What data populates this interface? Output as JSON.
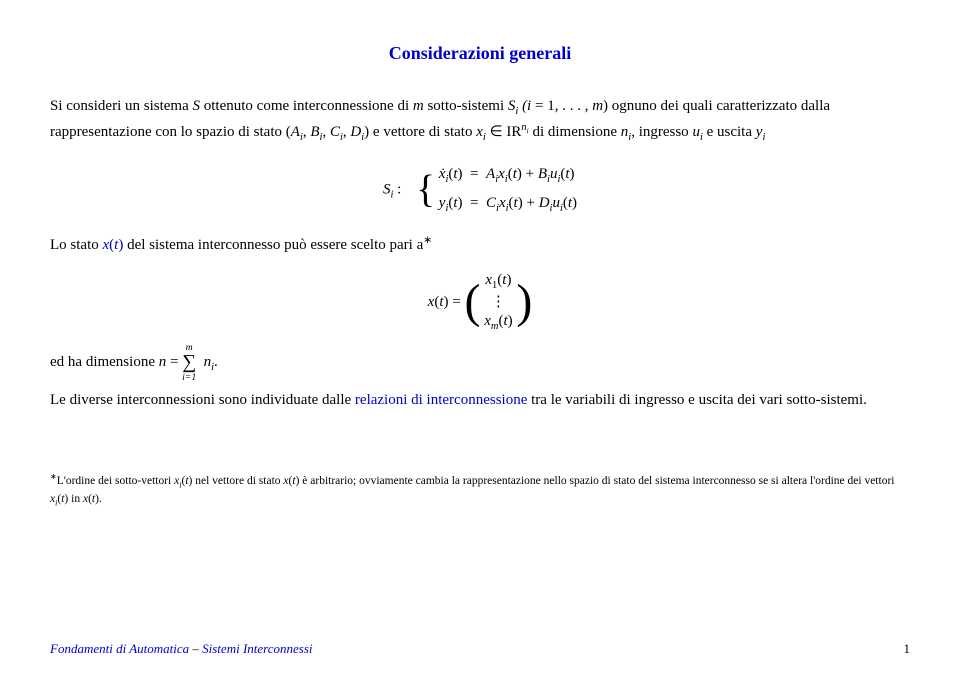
{
  "title": "Considerazioni generali",
  "p1a": "Si consideri un sistema ",
  "p1b": " ottenuto come interconnessione di ",
  "p1c": " sotto-sistemi ",
  "p1d": " ognuno dei quali caratterizzato dalla rappresentazione con lo spazio di stato ",
  "p1e": " e vettore di stato ",
  "p1f": " di dimensione ",
  "p1g": ", ingresso ",
  "p1h": " e uscita ",
  "p2": "Lo stato ",
  "p2b": " del sistema interconnesso può essere scelto pari a",
  "p3": "ed ha dimensione ",
  "p4a": "Le diverse interconnessioni sono individuate dalle ",
  "p4link": "relazioni di interconnessione",
  "p4b": " tra le variabili di ingresso e uscita dei vari sotto-sistemi.",
  "fn_a": "L'ordine dei sotto-vettori ",
  "fn_b": " nel vettore di stato ",
  "fn_c": " è arbitrario; ovviamente cambia la rappresentazione nello spazio di stato del sistema interconnesso se si altera l'ordine dei vettori ",
  "fn_d": " in ",
  "footer_a": "Fondamenti di Automatica",
  "footer_b": "Sistemi Interconnessi",
  "page_num": "1",
  "math": {
    "S": "S",
    "m": "m",
    "Si": "S",
    "i_range": "(i = 1, . . . , m)",
    "ABCD": "(A",
    "nsum": "n = ",
    "ni": "n",
    "xt": "x(t)",
    "xit": "x",
    "dots": "⋮"
  }
}
